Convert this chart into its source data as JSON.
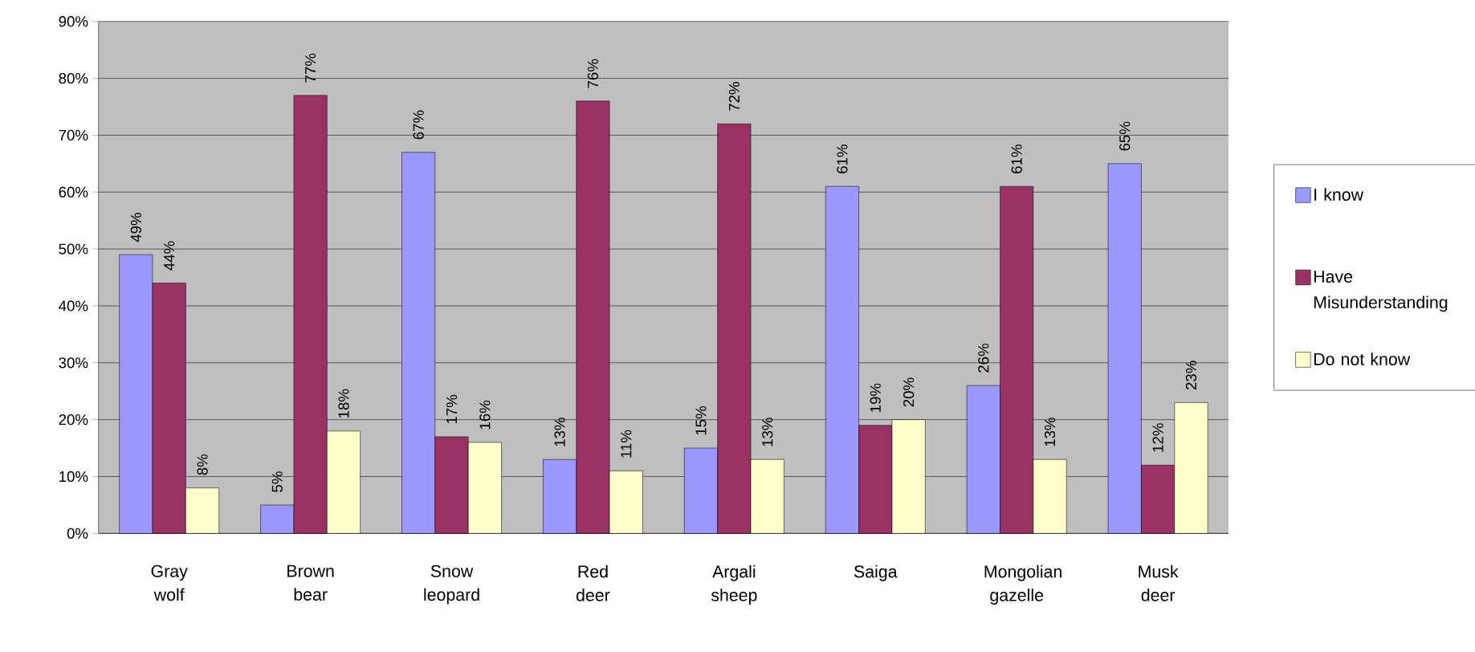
{
  "chart_data": {
    "type": "bar",
    "categories": [
      "Gray wolf",
      "Brown bear",
      "Snow leopard",
      "Red deer",
      "Argali sheep",
      "Saiga",
      "Mongolian gazelle",
      "Musk deer"
    ],
    "series": [
      {
        "name": "I know",
        "color": "#9999ff",
        "values": [
          49,
          5,
          67,
          13,
          15,
          61,
          26,
          65
        ],
        "value_labels": [
          "49%",
          "5%",
          "67%",
          "13%",
          "15%",
          "61%",
          "26%",
          "65%"
        ]
      },
      {
        "name": "Have Misunderstanding",
        "color": "#993366",
        "values": [
          44,
          77,
          17,
          76,
          72,
          19,
          61,
          12
        ],
        "value_labels": [
          "44%",
          "77%",
          "17%",
          "76%",
          "72%",
          "19%",
          "61%",
          "12%"
        ]
      },
      {
        "name": "Do not know",
        "color": "#ffffcc",
        "values": [
          8,
          18,
          16,
          11,
          13,
          20,
          13,
          23
        ],
        "value_labels": [
          "8%",
          "18%",
          "16%",
          "11%",
          "13%",
          "20%",
          "13%",
          "23%"
        ]
      }
    ],
    "ylim": [
      0,
      90
    ],
    "yticks": [
      {
        "value": 0,
        "label": "0%"
      },
      {
        "value": 10,
        "label": "10%"
      },
      {
        "value": 20,
        "label": "20%"
      },
      {
        "value": 30,
        "label": "30%"
      },
      {
        "value": 40,
        "label": "40%"
      },
      {
        "value": 50,
        "label": "50%"
      },
      {
        "value": 60,
        "label": "60%"
      },
      {
        "value": 70,
        "label": "70%"
      },
      {
        "value": 80,
        "label": "80%"
      },
      {
        "value": 90,
        "label": "90%"
      }
    ],
    "grid": "y",
    "legend": "right"
  }
}
